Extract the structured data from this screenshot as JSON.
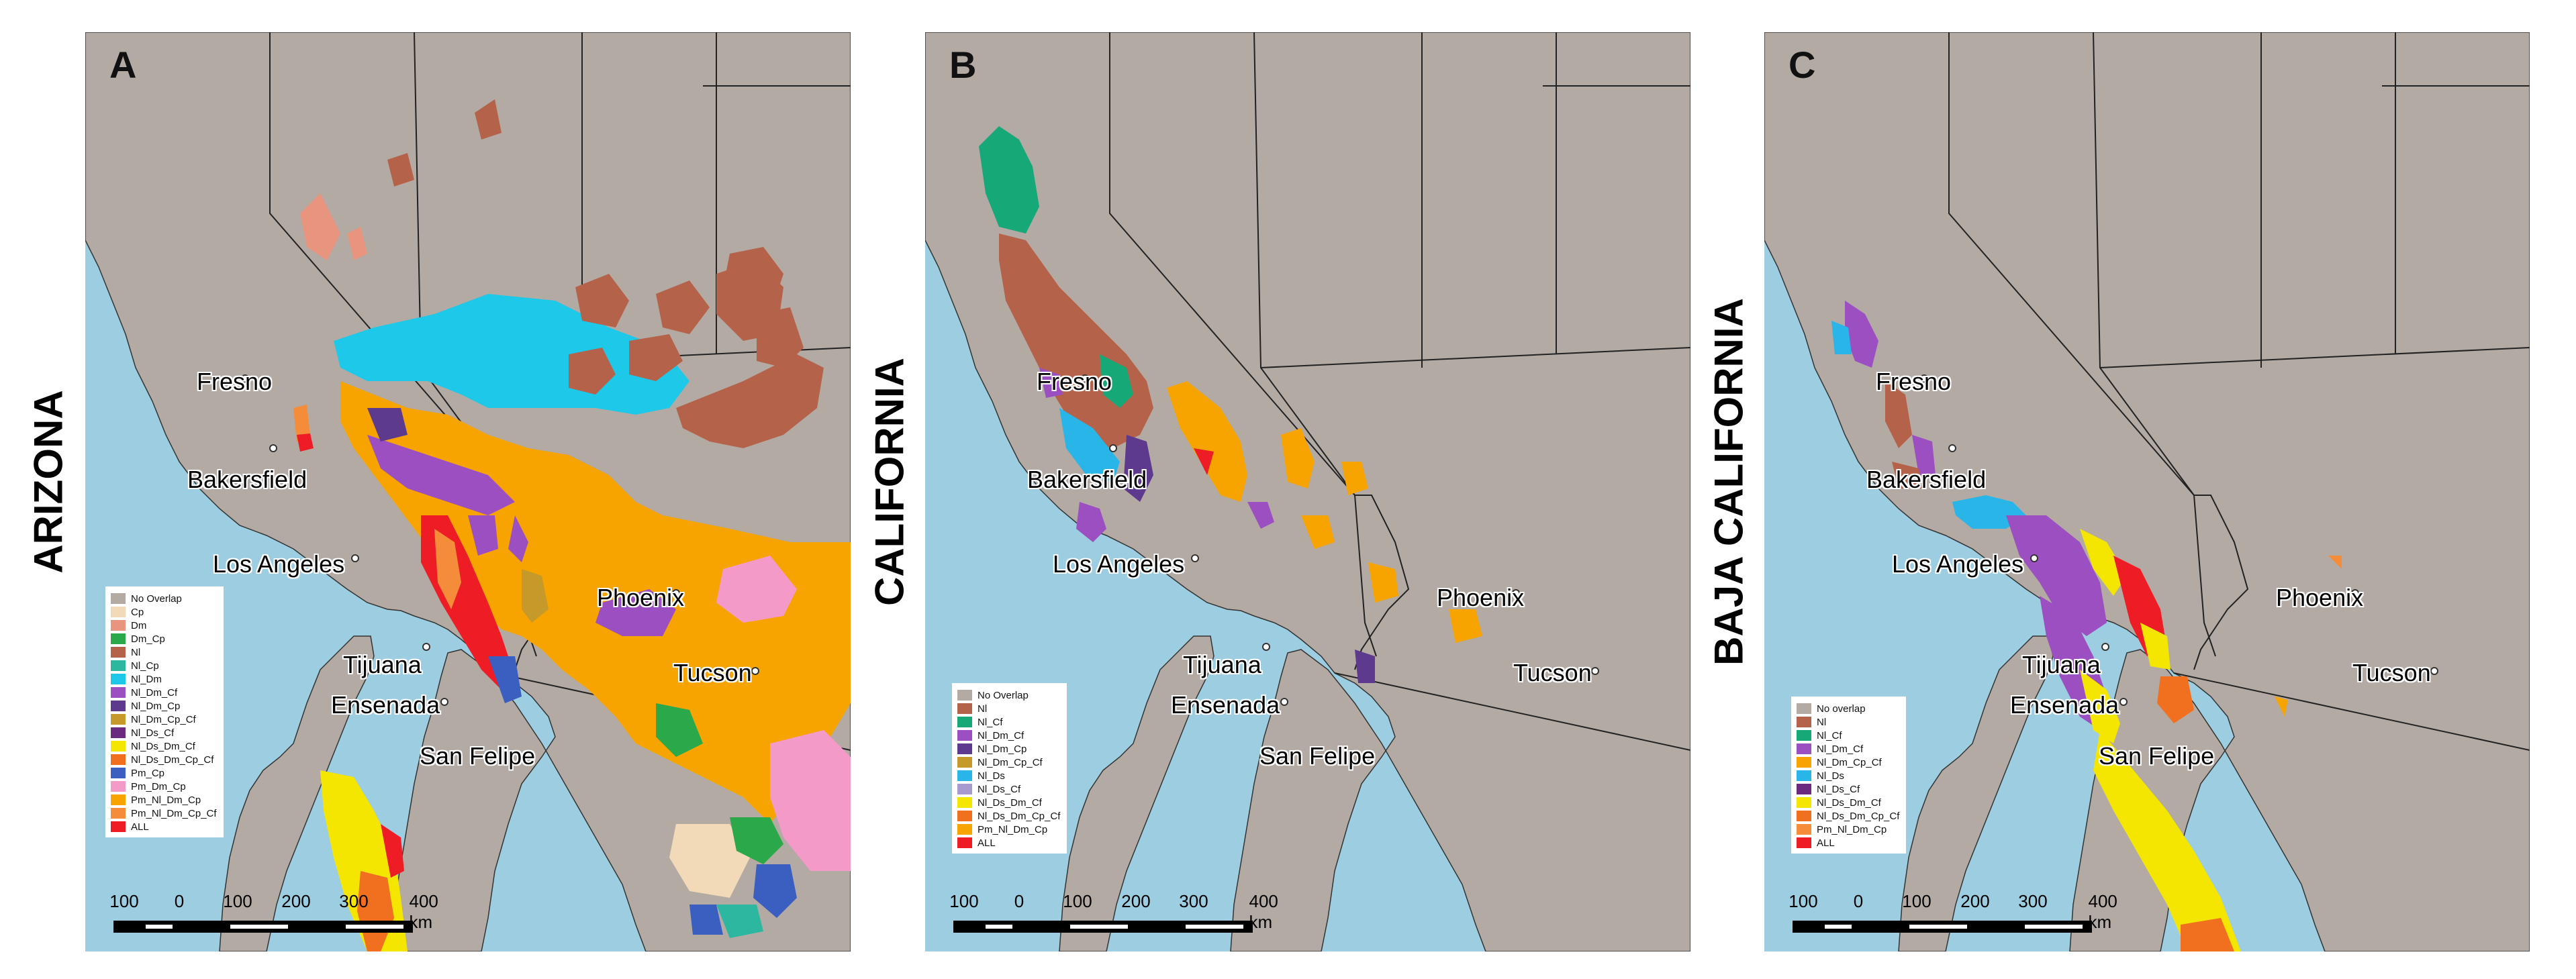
{
  "colors": {
    "ocean": "#9ccde0",
    "land": "#b3aaa4",
    "border": "#222222",
    "no_overlap": "#b3aaa4",
    "Cp": "#f2d9b7",
    "Dm": "#e8947f",
    "Dm_Cp": "#2aa84a",
    "Nl": "#b5624a",
    "Nl_Cp": "#2bb7a0",
    "Nl_Cf": "#17a878",
    "Nl_Dm": "#1ec8e8",
    "Nl_Dm_Cf": "#9b4fc0",
    "Nl_Dm_Cp": "#5d3a8e",
    "Nl_Dm_Cp_Cf": "#c59a2a",
    "Nl_Ds": "#29b5e8",
    "Nl_Ds_Cf": "#6a2a80",
    "Nl_Ds_Dm_Cf": "#f4e600",
    "Nl_Ds_Dm_Cp_Cf": "#f07020",
    "Pm_Cp": "#3a5fc0",
    "Pm_Dm_Cp": "#f49ac8",
    "Pm_Nl_Dm_Cp": "#f7a400",
    "Pm_Nl_Dm_Cp_Cf": "#f58c3a",
    "ALL": "#ee1c24"
  },
  "side_labels": [
    "ARIZONA",
    "CALIFORNIA",
    "BAJA CALIFORNIA"
  ],
  "panels": [
    {
      "letter": "A",
      "legend": [
        {
          "label": "No Overlap",
          "color": "#b3aaa4"
        },
        {
          "label": "Cp",
          "color": "#f2d9b7"
        },
        {
          "label": "Dm",
          "color": "#e8947f"
        },
        {
          "label": "Dm_Cp",
          "color": "#2aa84a"
        },
        {
          "label": "Nl",
          "color": "#b5624a"
        },
        {
          "label": "Nl_Cp",
          "color": "#2bb7a0"
        },
        {
          "label": "Nl_Dm",
          "color": "#1ec8e8"
        },
        {
          "label": "Nl_Dm_Cf",
          "color": "#9b4fc0"
        },
        {
          "label": "Nl_Dm_Cp",
          "color": "#5d3a8e"
        },
        {
          "label": "Nl_Dm_Cp_Cf",
          "color": "#c59a2a"
        },
        {
          "label": "Nl_Ds_Cf",
          "color": "#6a2a80"
        },
        {
          "label": "Nl_Ds_Dm_Cf",
          "color": "#f4e600"
        },
        {
          "label": "Nl_Ds_Dm_Cp_Cf",
          "color": "#f07020"
        },
        {
          "label": "Pm_Cp",
          "color": "#3a5fc0"
        },
        {
          "label": "Pm_Dm_Cp",
          "color": "#f49ac8"
        },
        {
          "label": "Pm_Nl_Dm_Cp",
          "color": "#f7a400"
        },
        {
          "label": "Pm_Nl_Dm_Cp_Cf",
          "color": "#f58c3a"
        },
        {
          "label": "ALL",
          "color": "#ee1c24"
        }
      ]
    },
    {
      "letter": "B",
      "legend": [
        {
          "label": "No Overlap",
          "color": "#b3aaa4"
        },
        {
          "label": "Nl",
          "color": "#b5624a"
        },
        {
          "label": "Nl_Cf",
          "color": "#17a878"
        },
        {
          "label": "Nl_Dm_Cf",
          "color": "#9b4fc0"
        },
        {
          "label": "Nl_Dm_Cp",
          "color": "#5d3a8e"
        },
        {
          "label": "Nl_Dm_Cp_Cf",
          "color": "#c59a2a"
        },
        {
          "label": "Nl_Ds",
          "color": "#29b5e8"
        },
        {
          "label": "Nl_Ds_Cf",
          "color": "#a79ad0"
        },
        {
          "label": "Nl_Ds_Dm_Cf",
          "color": "#f4e600"
        },
        {
          "label": "Nl_Ds_Dm_Cp_Cf",
          "color": "#f07020"
        },
        {
          "label": "Pm_Nl_Dm_Cp",
          "color": "#f7a400"
        },
        {
          "label": "ALL",
          "color": "#ee1c24"
        }
      ]
    },
    {
      "letter": "C",
      "legend": [
        {
          "label": "No overlap",
          "color": "#b3aaa4"
        },
        {
          "label": "Nl",
          "color": "#b5624a"
        },
        {
          "label": "Nl_Cf",
          "color": "#17a878"
        },
        {
          "label": "Nl_Dm_Cf",
          "color": "#9b4fc0"
        },
        {
          "label": "Nl_Dm_Cp_Cf",
          "color": "#f7a400"
        },
        {
          "label": "Nl_Ds",
          "color": "#29b5e8"
        },
        {
          "label": "Nl_Ds_Cf",
          "color": "#6a2a80"
        },
        {
          "label": "Nl_Ds_Dm_Cf",
          "color": "#f4e600"
        },
        {
          "label": "Nl_Ds_Dm_Cp_Cf",
          "color": "#f07020"
        },
        {
          "label": "Pm_Nl_Dm_Cp",
          "color": "#f58c3a"
        },
        {
          "label": "ALL",
          "color": "#ee1c24"
        }
      ]
    }
  ],
  "cities": {
    "fresno": "Fresno",
    "bakersfield": "Bakersfield",
    "los_angeles": "Los Angeles",
    "phoenix": "Phoenix",
    "tijuana": "Tijuana",
    "tucson": "Tucson",
    "ensenada": "Ensenada",
    "san_felipe": "San Felipe"
  },
  "scale": {
    "ticks": [
      "100",
      "0",
      "100",
      "200",
      "300",
      "400 km"
    ]
  }
}
